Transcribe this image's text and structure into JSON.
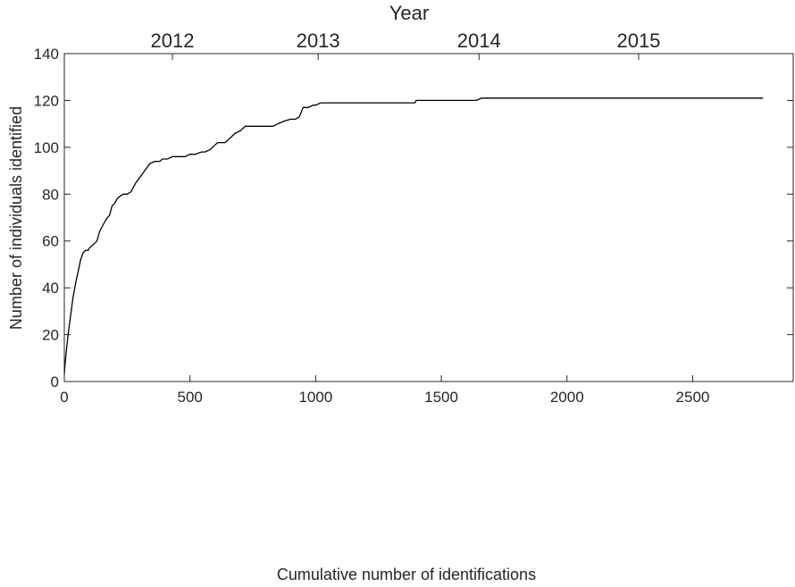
{
  "chart_data": {
    "type": "line",
    "title": "",
    "xlabel": "Cumulative number of identifications",
    "ylabel": "Number of individuals identified",
    "top_axis_label": "Year",
    "xlim": [
      0,
      2900
    ],
    "ylim": [
      0,
      140
    ],
    "x_ticks": [
      "0",
      "500",
      "1000",
      "1500",
      "2000",
      "2500"
    ],
    "y_ticks": [
      "0",
      "20",
      "40",
      "60",
      "80",
      "100",
      "120",
      "140"
    ],
    "top_ticks": [
      {
        "label": "2012",
        "x": 430
      },
      {
        "label": "2013",
        "x": 1010
      },
      {
        "label": "2014",
        "x": 1650
      },
      {
        "label": "2015",
        "x": 2285
      }
    ],
    "grid": false,
    "line_color": "#000000",
    "series": [
      {
        "x": [
          0,
          5,
          15,
          25,
          35,
          45,
          55,
          65,
          75,
          85,
          95,
          100,
          110,
          120,
          130,
          140,
          150,
          165,
          180,
          190,
          200,
          210,
          220,
          235,
          250,
          265,
          275,
          285,
          300,
          320,
          340,
          360,
          380,
          390,
          410,
          430,
          450,
          480,
          500,
          520,
          545,
          560,
          580,
          600,
          610,
          640,
          660,
          680,
          700,
          720,
          740,
          760,
          780,
          800,
          830,
          850,
          870,
          900,
          920,
          935,
          950,
          970,
          990,
          1000,
          1020,
          1050,
          1100,
          1200,
          1300,
          1395,
          1400,
          1450,
          1500,
          1550,
          1640,
          1660,
          1670,
          1700,
          1800,
          1900,
          2000,
          2200,
          2400,
          2600,
          2780
        ],
        "y": [
          3,
          10,
          20,
          28,
          36,
          42,
          47,
          52,
          55,
          56,
          56,
          57,
          58,
          59,
          60,
          64,
          66,
          69,
          71,
          75,
          76,
          78,
          79,
          80,
          80,
          81,
          83,
          85,
          87,
          90,
          93,
          94,
          94,
          95,
          95,
          96,
          96,
          96,
          97,
          97,
          98,
          98,
          99,
          101,
          102,
          102,
          104,
          106,
          107,
          109,
          109,
          109,
          109,
          109,
          109,
          110,
          111,
          112,
          112,
          113,
          117,
          117,
          118,
          118,
          119,
          119,
          119,
          119,
          119,
          119,
          120,
          120,
          120,
          120,
          120,
          121,
          121,
          121,
          121,
          121,
          121,
          121,
          121,
          121,
          121
        ]
      }
    ]
  }
}
